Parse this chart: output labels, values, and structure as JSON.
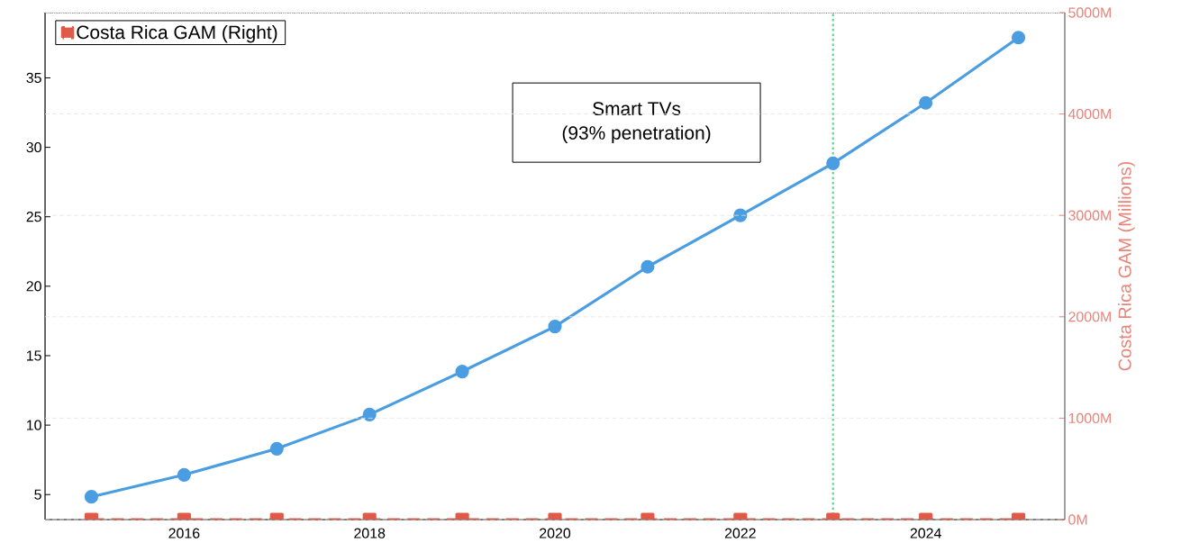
{
  "chart_data": {
    "type": "line",
    "x": [
      2015,
      2016,
      2017,
      2018,
      2019,
      2020,
      2021,
      2022,
      2023,
      2024,
      2025
    ],
    "series": [
      {
        "color": "#4a9de0",
        "values": [
          4.84,
          6.42,
          8.3,
          10.76,
          13.86,
          17.1,
          21.4,
          25.1,
          28.85,
          33.2,
          37.9
        ],
        "marker": "circle",
        "line_style": "solid"
      },
      {
        "name": "Costa Rica GAM (Right)",
        "color": "#e05a47",
        "values": [
          0,
          0,
          0,
          0,
          0,
          0,
          0,
          0,
          0,
          0,
          0
        ],
        "axis": "y2",
        "marker": "square",
        "line_style": "dashed"
      }
    ],
    "xlim": [
      2014.5,
      2025.5
    ],
    "xticks": [
      2016,
      2018,
      2020,
      2022,
      2024
    ],
    "ylim": [
      3.2,
      39.7
    ],
    "yticks": [
      5,
      10,
      15,
      20,
      25,
      30,
      35
    ],
    "y2lim": [
      0,
      5000
    ],
    "y2ticks": [
      {
        "value": 0,
        "label": "0M"
      },
      {
        "value": 1000,
        "label": "1000M"
      },
      {
        "value": 2000,
        "label": "2000M"
      },
      {
        "value": 3000,
        "label": "3000M"
      },
      {
        "value": 4000,
        "label": "4000M"
      },
      {
        "value": 5000,
        "label": "5000M"
      }
    ],
    "y2label": "Costa Rica GAM (Millions)",
    "ref_lines": [
      {
        "axis": "x",
        "value": 2023,
        "color": "#5fd68a",
        "line_style": "dotted"
      }
    ],
    "annotations": [
      "Smart TVs",
      "(93% penetration)"
    ],
    "grid": "y",
    "legend": "top left"
  }
}
